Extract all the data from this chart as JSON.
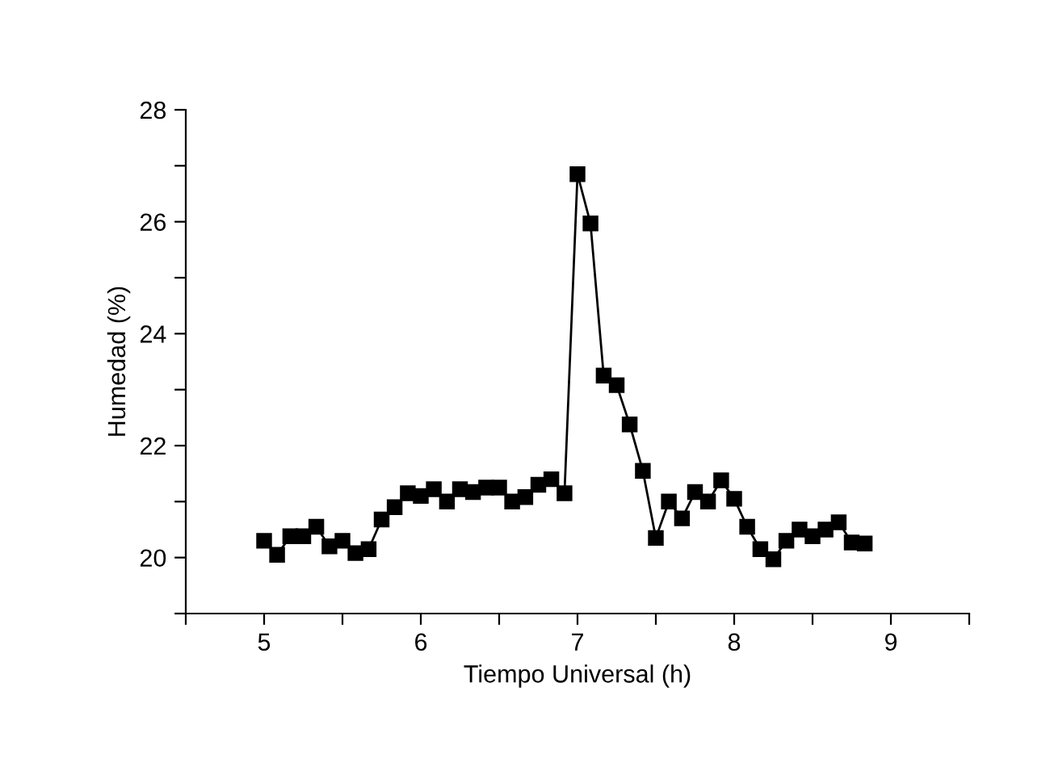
{
  "chart_data": {
    "type": "line",
    "xlabel": "Tiempo Universal (h)",
    "ylabel": "Humedad (%)",
    "x": [
      5.0,
      5.083,
      5.167,
      5.25,
      5.333,
      5.417,
      5.5,
      5.583,
      5.667,
      5.75,
      5.833,
      5.917,
      6.0,
      6.083,
      6.167,
      6.25,
      6.333,
      6.417,
      6.5,
      6.583,
      6.667,
      6.75,
      6.833,
      6.917,
      7.0,
      7.083,
      7.167,
      7.25,
      7.333,
      7.417,
      7.5,
      7.583,
      7.667,
      7.75,
      7.833,
      7.917,
      8.0,
      8.083,
      8.167,
      8.25,
      8.333,
      8.417,
      8.5,
      8.583,
      8.667,
      8.75,
      8.833
    ],
    "series": [
      {
        "color": "#000000",
        "values": [
          20.3,
          20.05,
          20.38,
          20.38,
          20.55,
          20.2,
          20.3,
          20.08,
          20.15,
          20.68,
          20.9,
          21.15,
          21.1,
          21.22,
          21.0,
          21.22,
          21.17,
          21.25,
          21.25,
          21.0,
          21.08,
          21.3,
          21.4,
          21.15,
          26.85,
          25.97,
          23.25,
          23.08,
          22.38,
          21.55,
          20.35,
          21.0,
          20.7,
          21.17,
          21.0,
          21.38,
          21.05,
          20.55,
          20.15,
          19.97,
          20.3,
          20.5,
          20.38,
          20.5,
          20.63,
          20.27,
          20.25
        ]
      }
    ],
    "marker": "square",
    "line_style": "solid",
    "grid": false,
    "legend": false,
    "xlim": [
      4.5,
      9.5
    ],
    "ylim": [
      19,
      28
    ],
    "xticks": [
      {
        "value": 4.5,
        "label": null
      },
      5,
      {
        "value": 5.5,
        "label": null
      },
      6,
      {
        "value": 6.5,
        "label": null
      },
      7,
      {
        "value": 7.5,
        "label": null
      },
      8,
      {
        "value": 8.5,
        "label": null
      },
      9,
      {
        "value": 9.5,
        "label": null
      }
    ],
    "yticks": [
      {
        "value": 19,
        "label": null
      },
      20,
      {
        "value": 21,
        "label": null
      },
      22,
      {
        "value": 23,
        "label": null
      },
      24,
      {
        "value": 25,
        "label": null
      },
      26,
      {
        "value": 27,
        "label": null
      },
      28
    ]
  }
}
